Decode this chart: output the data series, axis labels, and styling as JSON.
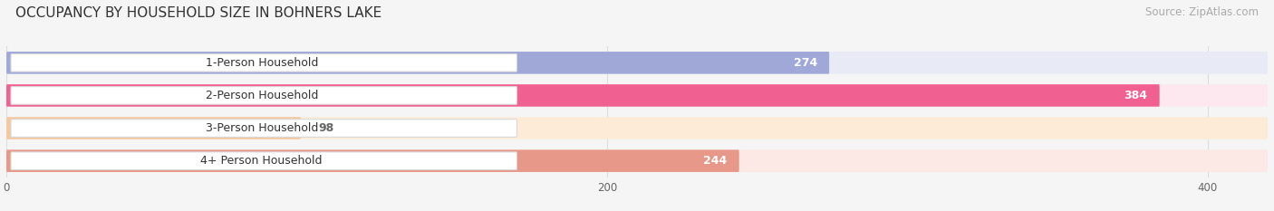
{
  "title": "OCCUPANCY BY HOUSEHOLD SIZE IN BOHNERS LAKE",
  "source": "Source: ZipAtlas.com",
  "categories": [
    "1-Person Household",
    "2-Person Household",
    "3-Person Household",
    "4+ Person Household"
  ],
  "values": [
    274,
    384,
    98,
    244
  ],
  "bar_colors": [
    "#a0a8d8",
    "#f06090",
    "#f5c9a0",
    "#e89888"
  ],
  "bar_bg_colors": [
    "#e8eaf5",
    "#fde8f0",
    "#fdebd8",
    "#fce8e5"
  ],
  "label_colors": [
    "white",
    "white",
    "#777777",
    "white"
  ],
  "xlim": [
    0,
    420
  ],
  "xticks": [
    0,
    200,
    400
  ],
  "figsize": [
    14.06,
    2.33
  ],
  "dpi": 100,
  "title_fontsize": 11,
  "source_fontsize": 8.5,
  "bar_label_fontsize": 9,
  "category_fontsize": 9,
  "bg_color": "#f5f5f5"
}
